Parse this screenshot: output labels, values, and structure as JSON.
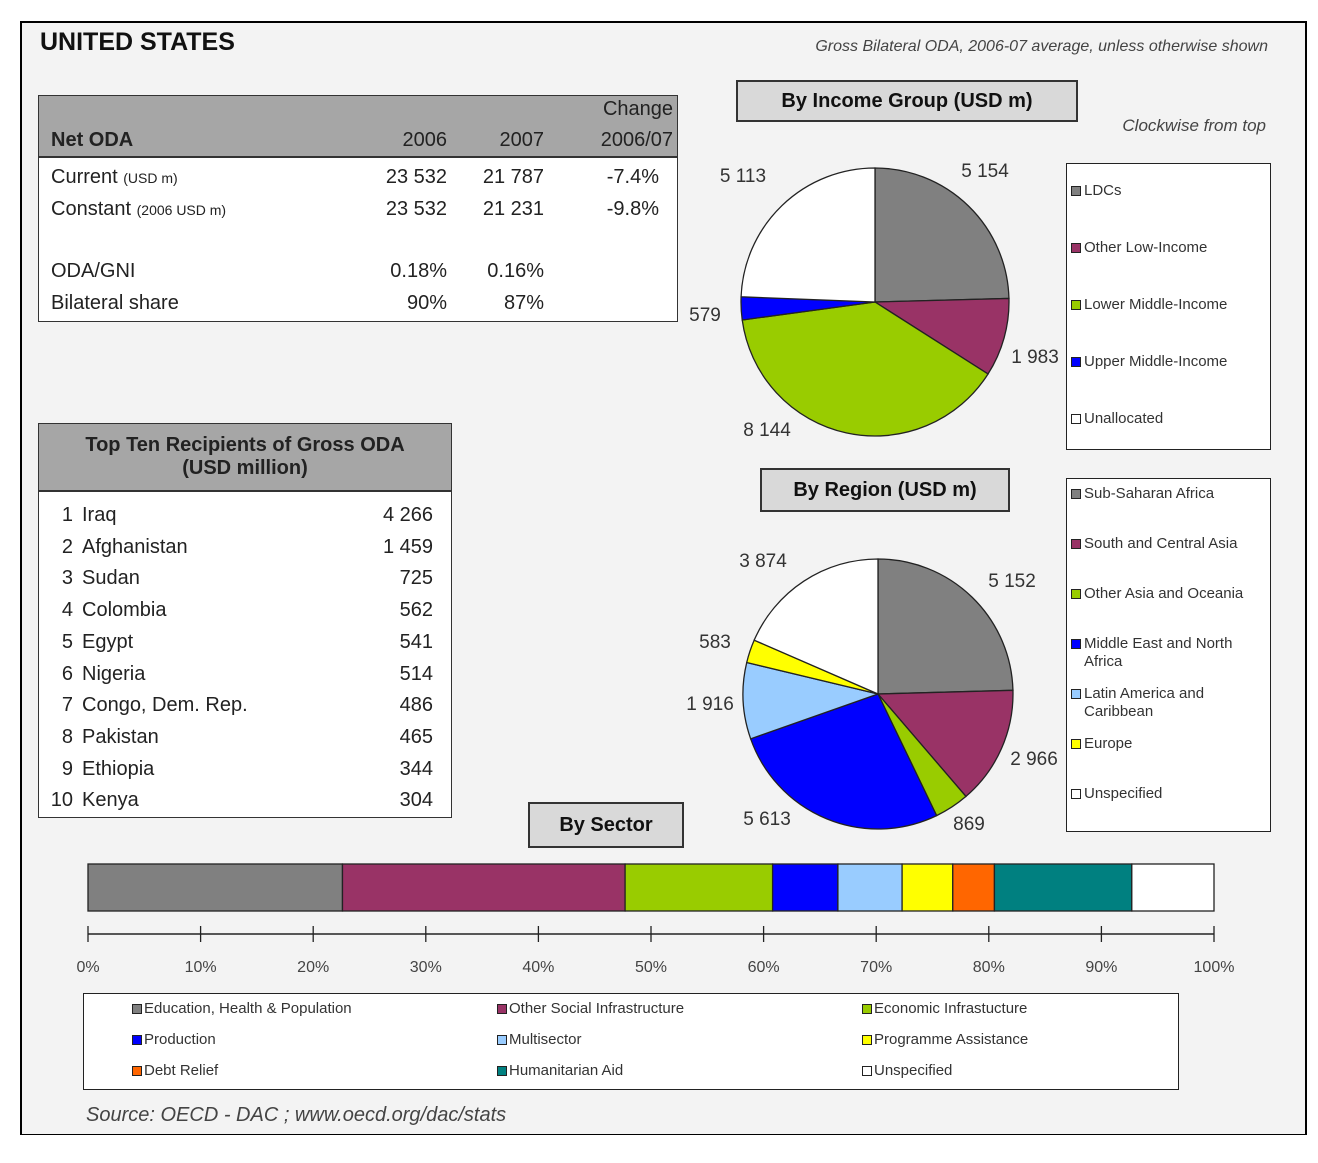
{
  "title": "UNITED STATES",
  "subtitle": "Gross Bilateral ODA, 2006-07 average, unless otherwise shown",
  "net_oda": {
    "headers": [
      "Net ODA",
      "2006",
      "2007",
      "Change",
      "2006/07"
    ],
    "rows": [
      {
        "label": "Current",
        "unit": "(USD m)",
        "v2006": "23 532",
        "v2007": "21 787",
        "change": "-7.4%"
      },
      {
        "label": "Constant",
        "unit": "(2006 USD m)",
        "v2006": "23 532",
        "v2007": "21 231",
        "change": "-9.8%"
      },
      {
        "label": "ODA/GNI",
        "unit": "",
        "v2006": "0.18%",
        "v2007": "0.16%",
        "change": ""
      },
      {
        "label": "Bilateral share",
        "unit": "",
        "v2006": "90%",
        "v2007": "87%",
        "change": ""
      }
    ]
  },
  "top_ten": {
    "title_line1": "Top Ten Recipients of Gross ODA",
    "title_line2": "(USD million)",
    "rows": [
      {
        "rank": "1",
        "name": "Iraq",
        "value": "4 266"
      },
      {
        "rank": "2",
        "name": "Afghanistan",
        "value": "1 459"
      },
      {
        "rank": "3",
        "name": "Sudan",
        "value": "725"
      },
      {
        "rank": "4",
        "name": "Colombia",
        "value": "562"
      },
      {
        "rank": "5",
        "name": "Egypt",
        "value": "541"
      },
      {
        "rank": "6",
        "name": "Nigeria",
        "value": "514"
      },
      {
        "rank": "7",
        "name": "Congo, Dem. Rep.",
        "value": "486"
      },
      {
        "rank": "8",
        "name": "Pakistan",
        "value": "465"
      },
      {
        "rank": "9",
        "name": "Ethiopia",
        "value": "344"
      },
      {
        "rank": "10",
        "name": "Kenya",
        "value": "304"
      }
    ]
  },
  "clockwise_note": "Clockwise from top",
  "source": "Source:  OECD - DAC ; www.oecd.org/dac/stats",
  "chart_data": [
    {
      "type": "pie",
      "title": "By Income Group (USD m)",
      "order": "clockwise from top",
      "slices": [
        {
          "name": "LDCs",
          "value": 5154,
          "label": "5 154",
          "color": "#808080"
        },
        {
          "name": "Other Low-Income",
          "value": 1983,
          "label": "1 983",
          "color": "#993366"
        },
        {
          "name": "Lower Middle-Income",
          "value": 8144,
          "label": "8 144",
          "color": "#99cc00"
        },
        {
          "name": "Upper Middle-Income",
          "value": 579,
          "label": "579",
          "color": "#0000ff"
        },
        {
          "name": "Unallocated",
          "value": 5113,
          "label": "5 113",
          "color": "#ffffff"
        }
      ],
      "legend": "right"
    },
    {
      "type": "pie",
      "title": "By Region (USD m)",
      "order": "clockwise from top",
      "slices": [
        {
          "name": "Sub-Saharan Africa",
          "value": 5152,
          "label": "5 152",
          "color": "#808080"
        },
        {
          "name": "South and Central Asia",
          "value": 2966,
          "label": "2 966",
          "color": "#993366"
        },
        {
          "name": "Other Asia and Oceania",
          "value": 869,
          "label": "869",
          "color": "#99cc00"
        },
        {
          "name": "Middle East and North Africa",
          "value": 5613,
          "label": "5 613",
          "color": "#0000ff"
        },
        {
          "name": "Latin America and Caribbean",
          "value": 1916,
          "label": "1 916",
          "color": "#99ccff"
        },
        {
          "name": "Europe",
          "value": 583,
          "label": "583",
          "color": "#ffff00"
        },
        {
          "name": "Unspecified",
          "value": 3874,
          "label": "3 874",
          "color": "#ffffff"
        }
      ],
      "legend": "right"
    },
    {
      "type": "bar",
      "orientation": "horizontal-stacked-100",
      "title": "By Sector",
      "xlim": [
        0,
        100
      ],
      "xticks": [
        "0%",
        "10%",
        "20%",
        "30%",
        "40%",
        "50%",
        "60%",
        "70%",
        "80%",
        "90%",
        "100%"
      ],
      "series": [
        {
          "name": "Education, Health & Population",
          "value": 22.6,
          "color": "#808080"
        },
        {
          "name": "Other Social Infrastructure",
          "value": 25.1,
          "color": "#993366"
        },
        {
          "name": "Economic Infrastucture",
          "value": 13.1,
          "color": "#99cc00"
        },
        {
          "name": "Production",
          "value": 5.8,
          "color": "#0000ff"
        },
        {
          "name": "Multisector",
          "value": 5.7,
          "color": "#99ccff"
        },
        {
          "name": "Programme Assistance",
          "value": 4.5,
          "color": "#ffff00"
        },
        {
          "name": "Debt Relief",
          "value": 3.7,
          "color": "#ff6600"
        },
        {
          "name": "Humanitarian Aid",
          "value": 12.2,
          "color": "#008080"
        },
        {
          "name": "Unspecified",
          "value": 7.3,
          "color": "#ffffff"
        }
      ],
      "legend": "bottom"
    }
  ]
}
